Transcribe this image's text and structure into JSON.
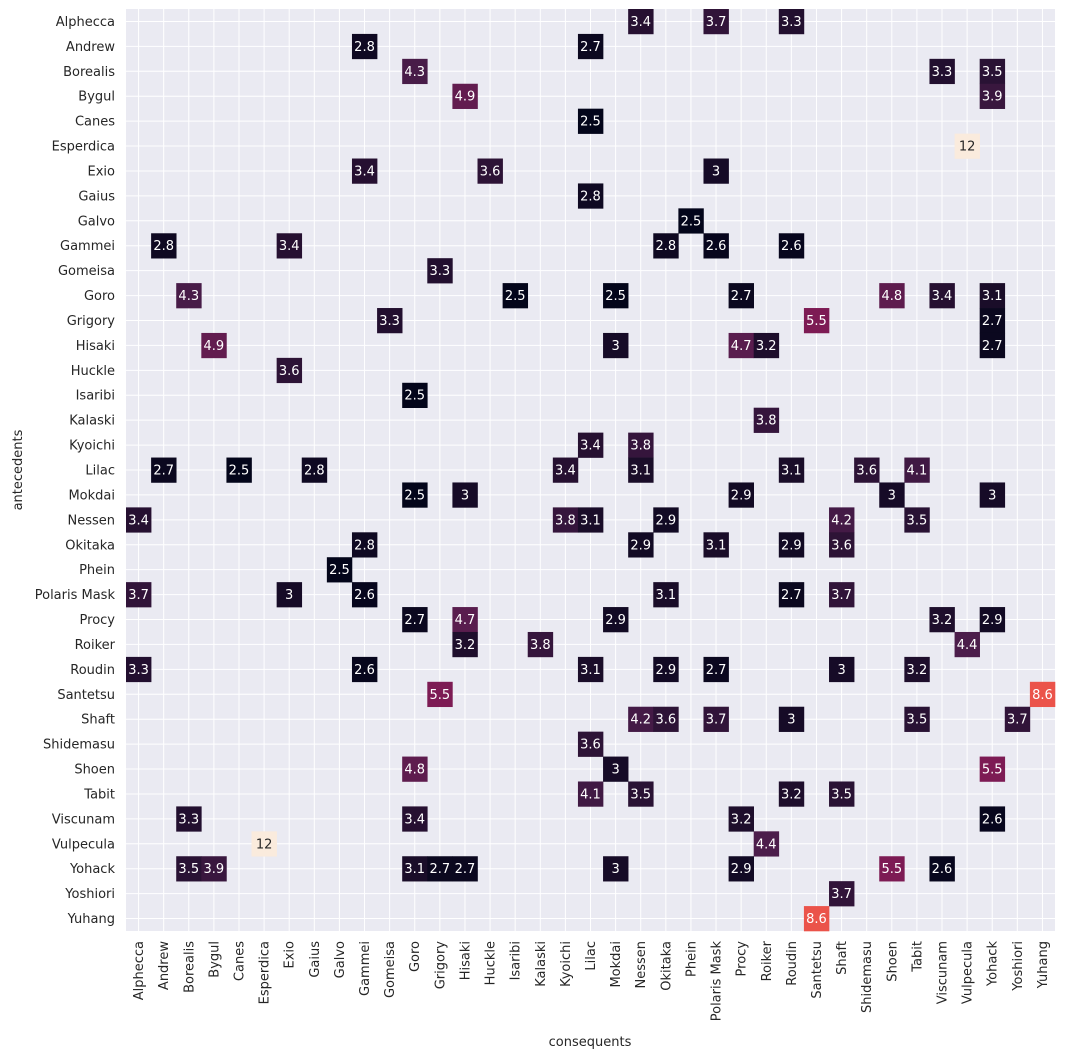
{
  "chart_data": {
    "type": "heatmap",
    "xlabel": "consequents",
    "ylabel": "antecedents",
    "rows": [
      "Alphecca",
      "Andrew",
      "Borealis",
      "Bygul",
      "Canes",
      "Esperdica",
      "Exio",
      "Gaius",
      "Galvo",
      "Gammei",
      "Gomeisa",
      "Goro",
      "Grigory",
      "Hisaki",
      "Huckle",
      "Isaribi",
      "Kalaski",
      "Kyoichi",
      "Lilac",
      "Mokdai",
      "Nessen",
      "Okitaka",
      "Phein",
      "Polaris Mask",
      "Procy",
      "Roiker",
      "Roudin",
      "Santetsu",
      "Shaft",
      "Shidemasu",
      "Shoen",
      "Tabit",
      "Viscunam",
      "Vulpecula",
      "Yohack",
      "Yoshiori",
      "Yuhang"
    ],
    "columns": [
      "Alphecca",
      "Andrew",
      "Borealis",
      "Bygul",
      "Canes",
      "Esperdica",
      "Exio",
      "Gaius",
      "Galvo",
      "Gammei",
      "Gomeisa",
      "Goro",
      "Grigory",
      "Hisaki",
      "Huckle",
      "Isaribi",
      "Kalaski",
      "Kyoichi",
      "Lilac",
      "Mokdai",
      "Nessen",
      "Okitaka",
      "Phein",
      "Polaris Mask",
      "Procy",
      "Roiker",
      "Roudin",
      "Santetsu",
      "Shaft",
      "Shidemasu",
      "Shoen",
      "Tabit",
      "Viscunam",
      "Vulpecula",
      "Yohack",
      "Yoshiori",
      "Yuhang"
    ],
    "cells": [
      {
        "row": "Alphecca",
        "col": "Nessen",
        "value": 3.4,
        "label": "3.4"
      },
      {
        "row": "Alphecca",
        "col": "Polaris Mask",
        "value": 3.7,
        "label": "3.7"
      },
      {
        "row": "Alphecca",
        "col": "Roudin",
        "value": 3.3,
        "label": "3.3"
      },
      {
        "row": "Andrew",
        "col": "Gammei",
        "value": 2.8,
        "label": "2.8"
      },
      {
        "row": "Andrew",
        "col": "Lilac",
        "value": 2.7,
        "label": "2.7"
      },
      {
        "row": "Borealis",
        "col": "Goro",
        "value": 4.3,
        "label": "4.3"
      },
      {
        "row": "Borealis",
        "col": "Viscunam",
        "value": 3.3,
        "label": "3.3"
      },
      {
        "row": "Borealis",
        "col": "Yohack",
        "value": 3.5,
        "label": "3.5"
      },
      {
        "row": "Bygul",
        "col": "Hisaki",
        "value": 4.9,
        "label": "4.9"
      },
      {
        "row": "Bygul",
        "col": "Yohack",
        "value": 3.9,
        "label": "3.9"
      },
      {
        "row": "Canes",
        "col": "Lilac",
        "value": 2.5,
        "label": "2.5"
      },
      {
        "row": "Esperdica",
        "col": "Vulpecula",
        "value": 12,
        "label": "12"
      },
      {
        "row": "Exio",
        "col": "Gammei",
        "value": 3.4,
        "label": "3.4"
      },
      {
        "row": "Exio",
        "col": "Huckle",
        "value": 3.6,
        "label": "3.6"
      },
      {
        "row": "Exio",
        "col": "Polaris Mask",
        "value": 3,
        "label": "3"
      },
      {
        "row": "Gaius",
        "col": "Lilac",
        "value": 2.8,
        "label": "2.8"
      },
      {
        "row": "Galvo",
        "col": "Phein",
        "value": 2.5,
        "label": "2.5"
      },
      {
        "row": "Gammei",
        "col": "Andrew",
        "value": 2.8,
        "label": "2.8"
      },
      {
        "row": "Gammei",
        "col": "Exio",
        "value": 3.4,
        "label": "3.4"
      },
      {
        "row": "Gammei",
        "col": "Okitaka",
        "value": 2.8,
        "label": "2.8"
      },
      {
        "row": "Gammei",
        "col": "Polaris Mask",
        "value": 2.6,
        "label": "2.6"
      },
      {
        "row": "Gammei",
        "col": "Roudin",
        "value": 2.6,
        "label": "2.6"
      },
      {
        "row": "Gomeisa",
        "col": "Grigory",
        "value": 3.3,
        "label": "3.3"
      },
      {
        "row": "Goro",
        "col": "Borealis",
        "value": 4.3,
        "label": "4.3"
      },
      {
        "row": "Goro",
        "col": "Isaribi",
        "value": 2.5,
        "label": "2.5"
      },
      {
        "row": "Goro",
        "col": "Mokdai",
        "value": 2.5,
        "label": "2.5"
      },
      {
        "row": "Goro",
        "col": "Procy",
        "value": 2.7,
        "label": "2.7"
      },
      {
        "row": "Goro",
        "col": "Shoen",
        "value": 4.8,
        "label": "4.8"
      },
      {
        "row": "Goro",
        "col": "Viscunam",
        "value": 3.4,
        "label": "3.4"
      },
      {
        "row": "Goro",
        "col": "Yohack",
        "value": 3.1,
        "label": "3.1"
      },
      {
        "row": "Grigory",
        "col": "Gomeisa",
        "value": 3.3,
        "label": "3.3"
      },
      {
        "row": "Grigory",
        "col": "Santetsu",
        "value": 5.5,
        "label": "5.5"
      },
      {
        "row": "Grigory",
        "col": "Yohack",
        "value": 2.7,
        "label": "2.7"
      },
      {
        "row": "Hisaki",
        "col": "Bygul",
        "value": 4.9,
        "label": "4.9"
      },
      {
        "row": "Hisaki",
        "col": "Mokdai",
        "value": 3,
        "label": "3"
      },
      {
        "row": "Hisaki",
        "col": "Procy",
        "value": 4.7,
        "label": "4.7"
      },
      {
        "row": "Hisaki",
        "col": "Roiker",
        "value": 3.2,
        "label": "3.2"
      },
      {
        "row": "Hisaki",
        "col": "Yohack",
        "value": 2.7,
        "label": "2.7"
      },
      {
        "row": "Huckle",
        "col": "Exio",
        "value": 3.6,
        "label": "3.6"
      },
      {
        "row": "Isaribi",
        "col": "Goro",
        "value": 2.5,
        "label": "2.5"
      },
      {
        "row": "Kalaski",
        "col": "Roiker",
        "value": 3.8,
        "label": "3.8"
      },
      {
        "row": "Kyoichi",
        "col": "Lilac",
        "value": 3.4,
        "label": "3.4"
      },
      {
        "row": "Kyoichi",
        "col": "Nessen",
        "value": 3.8,
        "label": "3.8"
      },
      {
        "row": "Lilac",
        "col": "Andrew",
        "value": 2.7,
        "label": "2.7"
      },
      {
        "row": "Lilac",
        "col": "Canes",
        "value": 2.5,
        "label": "2.5"
      },
      {
        "row": "Lilac",
        "col": "Gaius",
        "value": 2.8,
        "label": "2.8"
      },
      {
        "row": "Lilac",
        "col": "Kyoichi",
        "value": 3.4,
        "label": "3.4"
      },
      {
        "row": "Lilac",
        "col": "Nessen",
        "value": 3.1,
        "label": "3.1"
      },
      {
        "row": "Lilac",
        "col": "Roudin",
        "value": 3.1,
        "label": "3.1"
      },
      {
        "row": "Lilac",
        "col": "Shidemasu",
        "value": 3.6,
        "label": "3.6"
      },
      {
        "row": "Lilac",
        "col": "Tabit",
        "value": 4.1,
        "label": "4.1"
      },
      {
        "row": "Mokdai",
        "col": "Goro",
        "value": 2.5,
        "label": "2.5"
      },
      {
        "row": "Mokdai",
        "col": "Hisaki",
        "value": 3,
        "label": "3"
      },
      {
        "row": "Mokdai",
        "col": "Procy",
        "value": 2.9,
        "label": "2.9"
      },
      {
        "row": "Mokdai",
        "col": "Shoen",
        "value": 3,
        "label": "3"
      },
      {
        "row": "Mokdai",
        "col": "Yohack",
        "value": 3,
        "label": "3"
      },
      {
        "row": "Nessen",
        "col": "Alphecca",
        "value": 3.4,
        "label": "3.4"
      },
      {
        "row": "Nessen",
        "col": "Kyoichi",
        "value": 3.8,
        "label": "3.8"
      },
      {
        "row": "Nessen",
        "col": "Lilac",
        "value": 3.1,
        "label": "3.1"
      },
      {
        "row": "Nessen",
        "col": "Okitaka",
        "value": 2.9,
        "label": "2.9"
      },
      {
        "row": "Nessen",
        "col": "Shaft",
        "value": 4.2,
        "label": "4.2"
      },
      {
        "row": "Nessen",
        "col": "Tabit",
        "value": 3.5,
        "label": "3.5"
      },
      {
        "row": "Okitaka",
        "col": "Gammei",
        "value": 2.8,
        "label": "2.8"
      },
      {
        "row": "Okitaka",
        "col": "Nessen",
        "value": 2.9,
        "label": "2.9"
      },
      {
        "row": "Okitaka",
        "col": "Polaris Mask",
        "value": 3.1,
        "label": "3.1"
      },
      {
        "row": "Okitaka",
        "col": "Roudin",
        "value": 2.9,
        "label": "2.9"
      },
      {
        "row": "Okitaka",
        "col": "Shaft",
        "value": 3.6,
        "label": "3.6"
      },
      {
        "row": "Phein",
        "col": "Galvo",
        "value": 2.5,
        "label": "2.5"
      },
      {
        "row": "Polaris Mask",
        "col": "Alphecca",
        "value": 3.7,
        "label": "3.7"
      },
      {
        "row": "Polaris Mask",
        "col": "Exio",
        "value": 3,
        "label": "3"
      },
      {
        "row": "Polaris Mask",
        "col": "Gammei",
        "value": 2.6,
        "label": "2.6"
      },
      {
        "row": "Polaris Mask",
        "col": "Okitaka",
        "value": 3.1,
        "label": "3.1"
      },
      {
        "row": "Polaris Mask",
        "col": "Roudin",
        "value": 2.7,
        "label": "2.7"
      },
      {
        "row": "Polaris Mask",
        "col": "Shaft",
        "value": 3.7,
        "label": "3.7"
      },
      {
        "row": "Procy",
        "col": "Goro",
        "value": 2.7,
        "label": "2.7"
      },
      {
        "row": "Procy",
        "col": "Hisaki",
        "value": 4.7,
        "label": "4.7"
      },
      {
        "row": "Procy",
        "col": "Mokdai",
        "value": 2.9,
        "label": "2.9"
      },
      {
        "row": "Procy",
        "col": "Viscunam",
        "value": 3.2,
        "label": "3.2"
      },
      {
        "row": "Procy",
        "col": "Yohack",
        "value": 2.9,
        "label": "2.9"
      },
      {
        "row": "Roiker",
        "col": "Hisaki",
        "value": 3.2,
        "label": "3.2"
      },
      {
        "row": "Roiker",
        "col": "Kalaski",
        "value": 3.8,
        "label": "3.8"
      },
      {
        "row": "Roiker",
        "col": "Vulpecula",
        "value": 4.4,
        "label": "4.4"
      },
      {
        "row": "Roudin",
        "col": "Alphecca",
        "value": 3.3,
        "label": "3.3"
      },
      {
        "row": "Roudin",
        "col": "Gammei",
        "value": 2.6,
        "label": "2.6"
      },
      {
        "row": "Roudin",
        "col": "Lilac",
        "value": 3.1,
        "label": "3.1"
      },
      {
        "row": "Roudin",
        "col": "Okitaka",
        "value": 2.9,
        "label": "2.9"
      },
      {
        "row": "Roudin",
        "col": "Polaris Mask",
        "value": 2.7,
        "label": "2.7"
      },
      {
        "row": "Roudin",
        "col": "Shaft",
        "value": 3,
        "label": "3"
      },
      {
        "row": "Roudin",
        "col": "Tabit",
        "value": 3.2,
        "label": "3.2"
      },
      {
        "row": "Santetsu",
        "col": "Grigory",
        "value": 5.5,
        "label": "5.5"
      },
      {
        "row": "Santetsu",
        "col": "Yuhang",
        "value": 8.6,
        "label": "8.6"
      },
      {
        "row": "Shaft",
        "col": "Nessen",
        "value": 4.2,
        "label": "4.2"
      },
      {
        "row": "Shaft",
        "col": "Okitaka",
        "value": 3.6,
        "label": "3.6"
      },
      {
        "row": "Shaft",
        "col": "Polaris Mask",
        "value": 3.7,
        "label": "3.7"
      },
      {
        "row": "Shaft",
        "col": "Roudin",
        "value": 3,
        "label": "3"
      },
      {
        "row": "Shaft",
        "col": "Tabit",
        "value": 3.5,
        "label": "3.5"
      },
      {
        "row": "Shaft",
        "col": "Yoshiori",
        "value": 3.7,
        "label": "3.7"
      },
      {
        "row": "Shidemasu",
        "col": "Lilac",
        "value": 3.6,
        "label": "3.6"
      },
      {
        "row": "Shoen",
        "col": "Goro",
        "value": 4.8,
        "label": "4.8"
      },
      {
        "row": "Shoen",
        "col": "Mokdai",
        "value": 3,
        "label": "3"
      },
      {
        "row": "Shoen",
        "col": "Yohack",
        "value": 5.5,
        "label": "5.5"
      },
      {
        "row": "Tabit",
        "col": "Lilac",
        "value": 4.1,
        "label": "4.1"
      },
      {
        "row": "Tabit",
        "col": "Nessen",
        "value": 3.5,
        "label": "3.5"
      },
      {
        "row": "Tabit",
        "col": "Roudin",
        "value": 3.2,
        "label": "3.2"
      },
      {
        "row": "Tabit",
        "col": "Shaft",
        "value": 3.5,
        "label": "3.5"
      },
      {
        "row": "Viscunam",
        "col": "Borealis",
        "value": 3.3,
        "label": "3.3"
      },
      {
        "row": "Viscunam",
        "col": "Goro",
        "value": 3.4,
        "label": "3.4"
      },
      {
        "row": "Viscunam",
        "col": "Procy",
        "value": 3.2,
        "label": "3.2"
      },
      {
        "row": "Viscunam",
        "col": "Yohack",
        "value": 2.6,
        "label": "2.6"
      },
      {
        "row": "Vulpecula",
        "col": "Esperdica",
        "value": 12,
        "label": "12"
      },
      {
        "row": "Vulpecula",
        "col": "Roiker",
        "value": 4.4,
        "label": "4.4"
      },
      {
        "row": "Yohack",
        "col": "Borealis",
        "value": 3.5,
        "label": "3.5"
      },
      {
        "row": "Yohack",
        "col": "Bygul",
        "value": 3.9,
        "label": "3.9"
      },
      {
        "row": "Yohack",
        "col": "Goro",
        "value": 3.1,
        "label": "3.1"
      },
      {
        "row": "Yohack",
        "col": "Grigory",
        "value": 2.7,
        "label": "2.7"
      },
      {
        "row": "Yohack",
        "col": "Hisaki",
        "value": 2.7,
        "label": "2.7"
      },
      {
        "row": "Yohack",
        "col": "Mokdai",
        "value": 3,
        "label": "3"
      },
      {
        "row": "Yohack",
        "col": "Procy",
        "value": 2.9,
        "label": "2.9"
      },
      {
        "row": "Yohack",
        "col": "Shoen",
        "value": 5.5,
        "label": "5.5"
      },
      {
        "row": "Yohack",
        "col": "Viscunam",
        "value": 2.6,
        "label": "2.6"
      },
      {
        "row": "Yoshiori",
        "col": "Shaft",
        "value": 3.7,
        "label": "3.7"
      },
      {
        "row": "Yuhang",
        "col": "Santetsu",
        "value": 8.6,
        "label": "8.6"
      }
    ],
    "color_scale": {
      "name": "rocket",
      "vmin": 2.5,
      "vmax": 12,
      "stops": [
        "#03051a",
        "#4c1d4b",
        "#a11a5b",
        "#e83f3f",
        "#f69c73",
        "#faebdd"
      ]
    },
    "background_color": "#eaeaf2",
    "grid": true
  }
}
